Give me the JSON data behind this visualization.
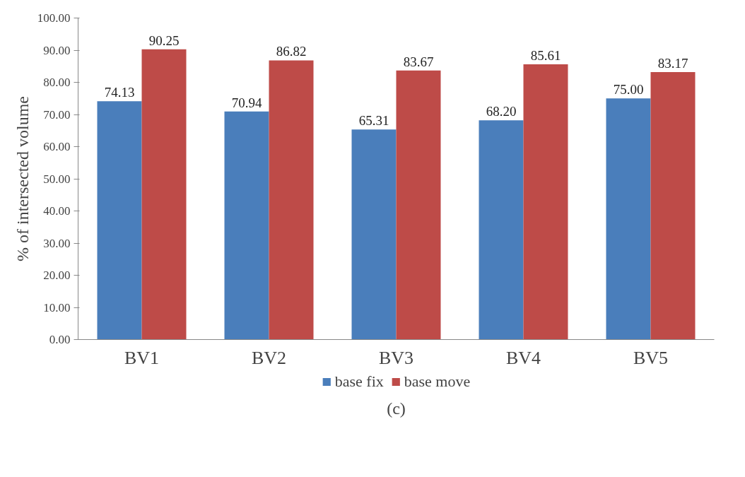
{
  "chart_data": {
    "type": "bar",
    "ylabel": "% of intersected volume",
    "categories": [
      "BV1",
      "BV2",
      "BV3",
      "BV4",
      "BV5"
    ],
    "series": [
      {
        "name": "base fix",
        "color": "#4a7ebb",
        "values": [
          74.13,
          70.94,
          65.31,
          68.2,
          75.0
        ],
        "value_labels": [
          "74.13",
          "70.94",
          "65.31",
          "68.20",
          "75.00"
        ]
      },
      {
        "name": "base move",
        "color": "#be4b48",
        "values": [
          90.25,
          86.82,
          83.67,
          85.61,
          83.17
        ],
        "value_labels": [
          "90.25",
          "86.82",
          "83.67",
          "85.61",
          "83.17"
        ]
      }
    ],
    "ylim": [
      0,
      100
    ],
    "yticks": [
      {
        "value": 0,
        "label": "0.00"
      },
      {
        "value": 10,
        "label": "10.00"
      },
      {
        "value": 20,
        "label": "20.00"
      },
      {
        "value": 30,
        "label": "30.00"
      },
      {
        "value": 40,
        "label": "40.00"
      },
      {
        "value": 50,
        "label": "50.00"
      },
      {
        "value": 60,
        "label": "60.00"
      },
      {
        "value": 70,
        "label": "70.00"
      },
      {
        "value": 80,
        "label": "80.00"
      },
      {
        "value": 90,
        "label": "90.00"
      },
      {
        "value": 100,
        "label": "100.00"
      }
    ],
    "grid": false,
    "legend": "bottom",
    "annotations": [
      "(c)"
    ]
  }
}
